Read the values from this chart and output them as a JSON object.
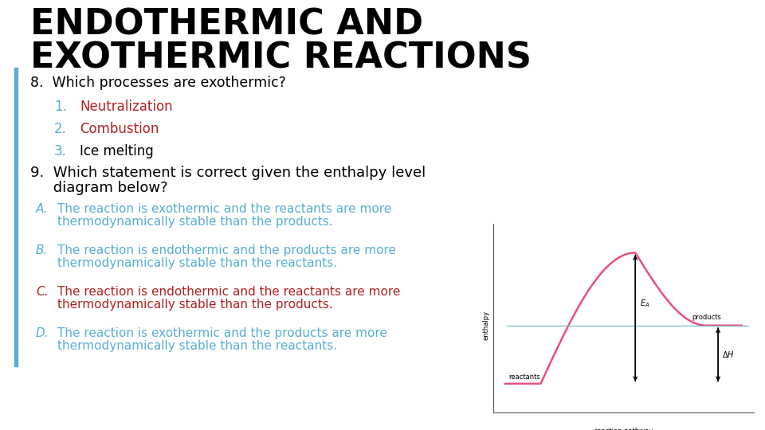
{
  "title_line1": "ENDOTHERMIC AND",
  "title_line2": "EXOTHERMIC REACTIONS",
  "title_fontsize": 32,
  "title_color": "#000000",
  "bg_color": "#ffffff",
  "accent_bar_color": "#5aaed0",
  "q8_text": "8.  Which processes are exothermic?",
  "q8_fontsize": 12.5,
  "q8_color": "#000000",
  "items_q8": [
    {
      "num": "1.",
      "text": "Neutralization",
      "color": "#b22222"
    },
    {
      "num": "2.",
      "text": "Combustion",
      "color": "#b22222"
    },
    {
      "num": "3.",
      "text": "Ice melting",
      "color": "#000000"
    }
  ],
  "item_fontsize": 12,
  "q9_text_line1": "9.  Which statement is correct given the enthalpy level",
  "q9_text_line2": "     diagram below?",
  "q9_fontsize": 13,
  "q9_color": "#000000",
  "options_q9": [
    {
      "letter": "A.",
      "text1": "The reaction is exothermic and the reactants are more",
      "text2": "thermodynamically stable than the products.",
      "color": "#5aaed0"
    },
    {
      "letter": "B.",
      "text1": "The reaction is endothermic and the products are more",
      "text2": "thermodynamically stable than the reactants.",
      "color": "#5aaed0"
    },
    {
      "letter": "C.",
      "text1": "The reaction is endothermic and the reactants are more",
      "text2": "thermodynamically stable than the products.",
      "color": "#b22222"
    },
    {
      "letter": "D.",
      "text1": "The reaction is exothermic and the products are more",
      "text2": "thermodynamically stable than the reactants.",
      "color": "#5aaed0"
    }
  ],
  "option_fontsize": 11,
  "num_color_blue": "#5aaed0"
}
